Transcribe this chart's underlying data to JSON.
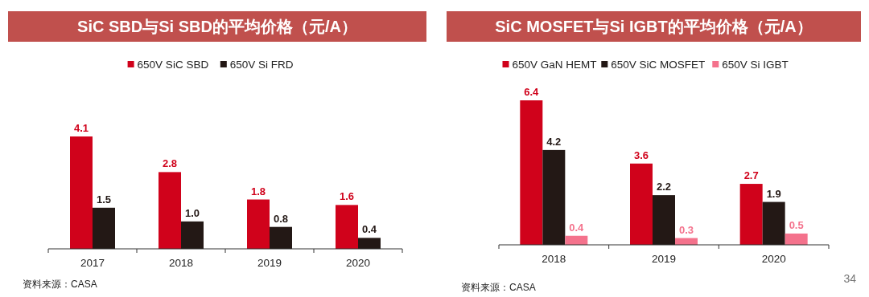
{
  "chart_data": [
    {
      "type": "bar",
      "title": "SiC SBD与Si SBD的平均价格（元/A）",
      "categories": [
        "2017",
        "2018",
        "2019",
        "2020"
      ],
      "series": [
        {
          "name": "650V SiC SBD",
          "color": "#d0021b",
          "values": [
            4.1,
            2.8,
            1.8,
            1.6
          ]
        },
        {
          "name": "650V Si FRD",
          "color": "#231815",
          "values": [
            1.5,
            1.0,
            0.8,
            0.4
          ],
          "value_labels": [
            "1.5",
            "1.0",
            "0.8",
            "0.4"
          ]
        }
      ],
      "data_labels": true,
      "legend": "top",
      "annotations": [
        "资料来源：CASA"
      ]
    },
    {
      "type": "bar",
      "title": "SiC MOSFET与Si IGBT的平均价格（元/A）",
      "categories": [
        "2018",
        "2019",
        "2020"
      ],
      "series": [
        {
          "name": "650V GaN HEMT",
          "color": "#d0021b",
          "values": [
            6.4,
            3.6,
            2.7
          ]
        },
        {
          "name": "650V SiC MOSFET",
          "color": "#231815",
          "values": [
            4.2,
            2.2,
            1.9
          ]
        },
        {
          "name": "650V Si IGBT",
          "color": "#f4728c",
          "values": [
            0.4,
            0.3,
            0.5
          ]
        }
      ],
      "data_labels": true,
      "legend": "top",
      "annotations": [
        "资料来源：CASA",
        "34"
      ]
    }
  ]
}
